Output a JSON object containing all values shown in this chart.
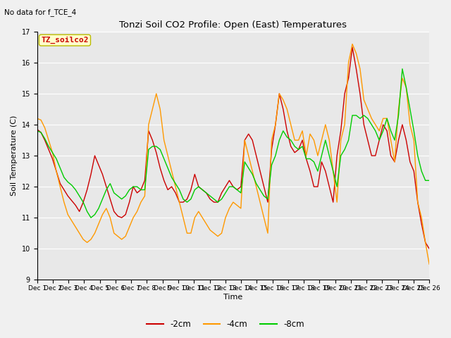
{
  "title": "Tonzi Soil CO2 Profile: Open (East) Temperatures",
  "subtitle": "No data for f_TCE_4",
  "ylabel": "Soil Temperature (C)",
  "xlabel": "Time",
  "ylim": [
    9.0,
    17.0
  ],
  "yticks": [
    9.0,
    10.0,
    11.0,
    12.0,
    13.0,
    14.0,
    15.0,
    16.0,
    17.0
  ],
  "bg_color": "#e8e8e8",
  "fig_color": "#f0f0f0",
  "series_colors": {
    "2cm": "#cc0000",
    "4cm": "#ff9900",
    "8cm": "#00cc00"
  },
  "x_tick_labels": [
    "Dec 1",
    "Dec 12",
    "Dec 13",
    "Dec 14",
    "Dec 15",
    "Dec 16",
    "Dec 17",
    "Dec 18",
    "Dec 19",
    "Dec 20",
    "Dec 21",
    "Dec 22",
    "Dec 23",
    "Dec 24",
    "Dec 25",
    "Dec 26"
  ],
  "cm2": [
    13.85,
    13.75,
    13.5,
    13.2,
    12.9,
    12.5,
    12.1,
    11.9,
    11.7,
    11.55,
    11.4,
    11.2,
    11.5,
    11.9,
    12.4,
    13.0,
    12.7,
    12.4,
    12.0,
    11.6,
    11.2,
    11.05,
    11.0,
    11.1,
    11.5,
    12.0,
    11.8,
    11.9,
    12.2,
    13.8,
    13.5,
    13.1,
    12.6,
    12.2,
    11.9,
    12.0,
    11.8,
    11.5,
    11.5,
    11.6,
    11.9,
    12.4,
    12.0,
    11.9,
    11.8,
    11.6,
    11.5,
    11.5,
    11.8,
    12.0,
    12.2,
    12.0,
    11.9,
    12.0,
    13.5,
    13.7,
    13.5,
    13.0,
    12.5,
    12.0,
    11.5,
    13.2,
    14.0,
    15.0,
    14.5,
    13.8,
    13.3,
    13.1,
    13.2,
    13.5,
    12.9,
    12.5,
    12.0,
    12.0,
    12.8,
    12.5,
    12.0,
    11.5,
    13.0,
    13.8,
    15.0,
    15.5,
    16.5,
    15.8,
    15.0,
    14.0,
    13.5,
    13.0,
    13.0,
    13.5,
    14.0,
    13.8,
    13.0,
    12.8,
    13.5,
    14.0,
    13.5,
    12.8,
    12.5,
    11.5,
    10.8,
    10.2,
    10.0
  ],
  "cm4": [
    14.2,
    14.15,
    13.9,
    13.5,
    13.1,
    12.5,
    12.0,
    11.5,
    11.1,
    10.9,
    10.7,
    10.5,
    10.3,
    10.2,
    10.3,
    10.5,
    10.8,
    11.1,
    11.3,
    11.0,
    10.5,
    10.4,
    10.3,
    10.4,
    10.7,
    11.0,
    11.2,
    11.5,
    11.7,
    14.0,
    14.5,
    15.0,
    14.5,
    13.5,
    13.0,
    12.5,
    12.0,
    11.5,
    11.0,
    10.5,
    10.5,
    11.0,
    11.2,
    11.0,
    10.8,
    10.6,
    10.5,
    10.4,
    10.5,
    11.0,
    11.3,
    11.5,
    11.4,
    11.3,
    13.5,
    13.0,
    12.5,
    12.0,
    11.5,
    11.0,
    10.5,
    13.5,
    14.0,
    15.0,
    14.8,
    14.5,
    14.0,
    13.5,
    13.5,
    13.8,
    13.0,
    13.7,
    13.5,
    13.0,
    13.5,
    14.0,
    13.5,
    12.5,
    11.5,
    13.5,
    14.0,
    16.0,
    16.6,
    16.3,
    15.8,
    14.8,
    14.5,
    14.2,
    14.0,
    13.8,
    14.2,
    14.2,
    13.5,
    12.8,
    14.5,
    15.5,
    15.2,
    14.0,
    13.5,
    11.5,
    11.0,
    10.2,
    9.5
  ],
  "cm8": [
    13.8,
    13.75,
    13.55,
    13.3,
    13.1,
    12.9,
    12.6,
    12.3,
    12.15,
    12.05,
    11.9,
    11.7,
    11.5,
    11.2,
    11.0,
    11.1,
    11.3,
    11.6,
    11.9,
    12.1,
    11.8,
    11.7,
    11.6,
    11.7,
    11.9,
    12.0,
    12.0,
    11.9,
    11.9,
    13.2,
    13.3,
    13.3,
    13.2,
    12.9,
    12.6,
    12.3,
    12.1,
    11.9,
    11.6,
    11.5,
    11.6,
    11.9,
    12.0,
    11.9,
    11.8,
    11.7,
    11.6,
    11.5,
    11.6,
    11.8,
    12.0,
    12.0,
    11.9,
    11.8,
    12.8,
    12.6,
    12.4,
    12.1,
    11.9,
    11.7,
    11.6,
    12.7,
    13.0,
    13.5,
    13.8,
    13.6,
    13.5,
    13.3,
    13.2,
    13.3,
    12.9,
    12.9,
    12.8,
    12.5,
    13.0,
    13.5,
    13.0,
    12.5,
    12.0,
    13.0,
    13.2,
    13.5,
    14.3,
    14.3,
    14.2,
    14.3,
    14.2,
    14.0,
    13.8,
    13.5,
    13.8,
    14.2,
    13.8,
    13.5,
    14.3,
    15.8,
    15.2,
    14.5,
    13.8,
    13.0,
    12.5,
    12.2,
    12.2
  ]
}
